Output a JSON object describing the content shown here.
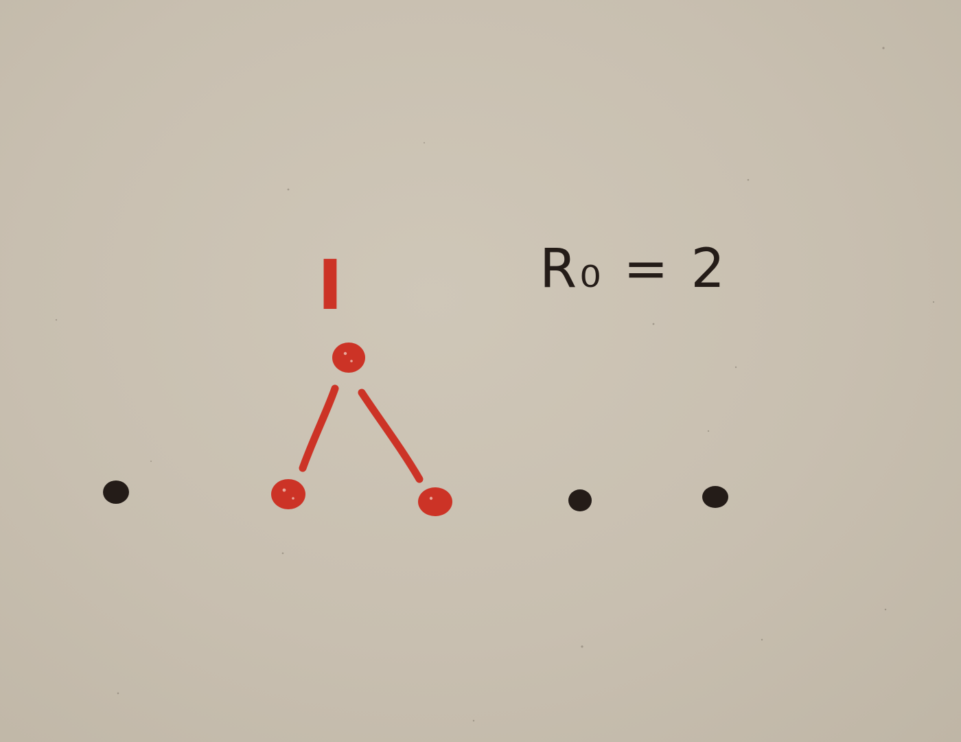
{
  "diagram": {
    "infected_label": "I",
    "r0_label": "R₀ = 2",
    "nodes": [
      {
        "id": "infected",
        "status": "infected"
      },
      {
        "id": "secondary-left",
        "status": "infected"
      },
      {
        "id": "secondary-right",
        "status": "infected"
      },
      {
        "id": "susceptible-1",
        "status": "susceptible"
      },
      {
        "id": "susceptible-2",
        "status": "susceptible"
      },
      {
        "id": "susceptible-3",
        "status": "susceptible"
      }
    ],
    "edges": [
      {
        "from": "infected",
        "to": "secondary-left"
      },
      {
        "from": "infected",
        "to": "secondary-right"
      }
    ]
  },
  "colors": {
    "paper": "#c9c0b1",
    "infected_ink": "#cc3326",
    "plain_ink": "#241c18"
  }
}
